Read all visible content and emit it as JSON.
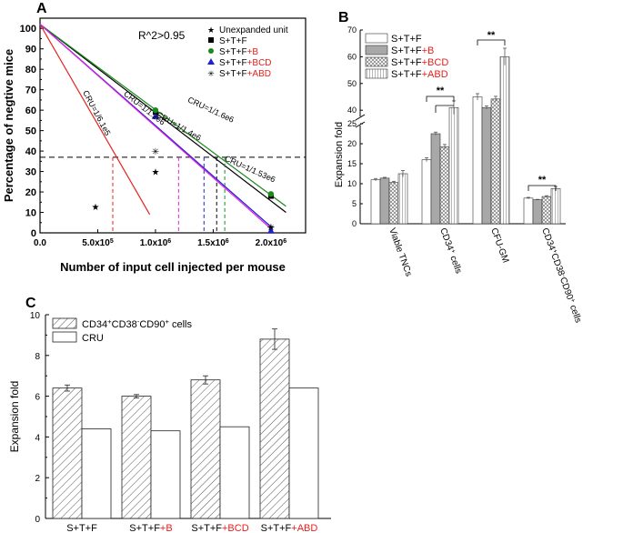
{
  "colors": {
    "red": "#e8201e",
    "black": "#000000",
    "green": "#1c8a1c",
    "blue": "#2020d0",
    "magenta": "#e020e0",
    "gray": "#a8a8a8"
  },
  "chart_data": [
    {
      "id": "A",
      "panel_label": "A",
      "type": "line",
      "xlabel": "Number of input cell injected per mouse",
      "ylabel": "Percentage of negtive mice",
      "xlim": [
        0,
        2300000
      ],
      "ylim": [
        0,
        105
      ],
      "x_ticks": [
        0,
        500000,
        1000000,
        1500000,
        2000000
      ],
      "x_tick_labels": [
        "0.0",
        "5.0x10^5",
        "1.0x10^6",
        "1.5x10^6",
        "2.0x10^6"
      ],
      "y_ticks": [
        0,
        10,
        20,
        30,
        40,
        50,
        60,
        70,
        80,
        90,
        100
      ],
      "y_tick_labels": [
        "0",
        "10",
        "20",
        "30",
        "40",
        "50",
        "60",
        "70",
        "80",
        "90",
        "100"
      ],
      "annotation": "R^2>0.95",
      "reference_line_y": 37,
      "legend": [
        "Unexpanded unit",
        "S+T+F",
        "S+T+F+B",
        "S+T+F+BCD",
        "S+T+F+ABD"
      ],
      "legend_prefix": "S+T+F",
      "legend_suffix": [
        "+B",
        "+BCD",
        "+ABD"
      ],
      "series": [
        {
          "name": "Unexpanded unit",
          "color": "red",
          "marker": "star",
          "points": [
            [
              480000,
              13
            ],
            [
              1000000,
              30
            ],
            [
              2000000,
              3
            ]
          ],
          "fit_end": [
            950000,
            9
          ],
          "cru_x": 630000,
          "label": "CRU=1/6.1e5",
          "label_x": 470000,
          "label_y": 58,
          "label_angle": 62
        },
        {
          "name": "S+T+F",
          "color": "black",
          "marker": "square",
          "points": [
            [
              1000000,
              59
            ],
            [
              2000000,
              18
            ]
          ],
          "fit_end": [
            2130000,
            10
          ],
          "cru_x": 1530000
        },
        {
          "name": "S+T+F+B",
          "color": "green",
          "marker": "circle",
          "points": [
            [
              1000000,
              60
            ],
            [
              2000000,
              19
            ]
          ],
          "fit_end": [
            2130000,
            13
          ],
          "cru_x": 1600000,
          "label": "CRU=1/1.6e6",
          "label_x": 1470000,
          "label_y": 59,
          "label_angle": 25
        },
        {
          "name": "S+T+F+BCD",
          "color": "blue",
          "marker": "triangle",
          "points": [
            [
              1000000,
              57
            ],
            [
              2000000,
              1
            ]
          ],
          "fit_end": [
            2000000,
            3
          ],
          "cru_x": 1420000,
          "label": "CRU=1/1.4e6",
          "label_x": 1190000,
          "label_y": 51,
          "label_angle": 30,
          "label2": "CRU=1/1.53e6",
          "label2_x": 1810000,
          "label2_y": 30,
          "label2_angle": 24
        },
        {
          "name": "S+T+F+ABD",
          "color": "magenta",
          "marker": "asterisk",
          "points": [
            [
              1000000,
              40
            ],
            [
              2000000,
              3
            ]
          ],
          "fit_end": [
            2000000,
            2
          ],
          "cru_x": 1200000,
          "label": "CRU=1/1.2e6",
          "label_x": 890000,
          "label_y": 60,
          "label_angle": 38
        }
      ]
    },
    {
      "id": "B",
      "panel_label": "B",
      "type": "bar",
      "ylabel": "Expansion fold",
      "categories": [
        "Viable TNCs",
        "CD34+ cells",
        "CFU-GM",
        "CD34+CD38-CD90+ cells"
      ],
      "legend": [
        "S+T+F",
        "S+T+F+B",
        "S+T+F+BCD",
        "S+T+F+ABD"
      ],
      "legend_prefix": "S+T+F",
      "legend_suffix": [
        "+B",
        "+BCD",
        "+ABD"
      ],
      "y_ticks_lower": [
        0,
        5,
        10,
        15,
        20,
        25
      ],
      "y_ticks_upper": [
        40,
        50,
        60,
        70
      ],
      "axis_break": [
        27,
        37
      ],
      "series": [
        {
          "name": "S+T+F",
          "pattern": "white",
          "values": [
            11,
            16,
            45,
            6.4
          ],
          "errors": [
            0.3,
            0.5,
            1.2,
            0.2
          ]
        },
        {
          "name": "S+T+F+B",
          "pattern": "gray",
          "values": [
            11.4,
            22.5,
            41,
            6
          ],
          "errors": [
            0.2,
            0.4,
            0.6,
            0.1
          ]
        },
        {
          "name": "S+T+F+BCD",
          "pattern": "cross",
          "values": [
            10.3,
            19.2,
            44.2,
            6.8
          ],
          "errors": [
            0.3,
            0.6,
            1.0,
            0.2
          ]
        },
        {
          "name": "S+T+F+ABD",
          "pattern": "vlines",
          "values": [
            12.5,
            41,
            60,
            8.8
          ],
          "errors": [
            0.8,
            2.5,
            3.2,
            0.5
          ]
        }
      ],
      "significance": "**"
    },
    {
      "id": "C",
      "panel_label": "C",
      "type": "bar",
      "ylabel": "Expansion fold",
      "categories": [
        "S+T+F",
        "S+T+F+B",
        "S+T+F+BCD",
        "S+T+F+ABD"
      ],
      "category_prefix": "S+T+F",
      "category_suffix": [
        "",
        "+B",
        "+BCD",
        "+ABD"
      ],
      "ylim": [
        0,
        10
      ],
      "y_ticks": [
        0,
        2,
        4,
        6,
        8,
        10
      ],
      "legend": [
        "CD34+CD38-CD90+ cells",
        "CRU"
      ],
      "series": [
        {
          "name": "CD34+CD38-CD90+ cells",
          "pattern": "hatch",
          "values": [
            6.4,
            6.0,
            6.8,
            8.8
          ],
          "errors": [
            0.15,
            0.08,
            0.2,
            0.5
          ]
        },
        {
          "name": "CRU",
          "pattern": "white",
          "values": [
            4.4,
            4.3,
            4.5,
            6.4
          ],
          "errors": [
            0,
            0,
            0,
            0
          ]
        }
      ]
    }
  ]
}
